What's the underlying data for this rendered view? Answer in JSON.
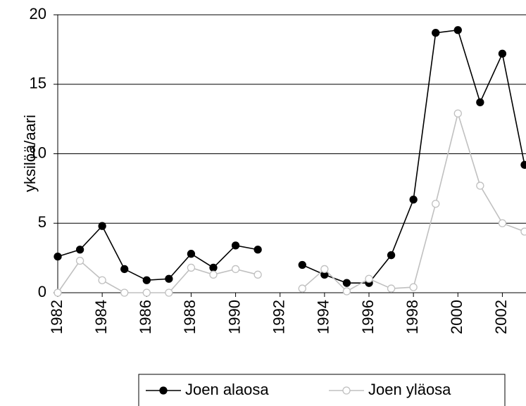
{
  "chart_data": {
    "type": "line",
    "y_label": "yksilöä/aari",
    "x": [
      1982,
      1983,
      1984,
      1985,
      1986,
      1987,
      1988,
      1989,
      1990,
      1991,
      1992,
      1993,
      1994,
      1995,
      1996,
      1997,
      1998,
      1999,
      2000,
      2001,
      2002,
      2003
    ],
    "series": [
      {
        "name": "Joen alaosa",
        "color": "#000000",
        "marker_fill": "#000000",
        "values": [
          2.6,
          3.1,
          4.8,
          1.7,
          0.9,
          1.0,
          2.8,
          1.8,
          3.4,
          3.1,
          null,
          2.0,
          1.3,
          0.7,
          0.7,
          2.7,
          6.7,
          18.7,
          18.9,
          13.7,
          17.2,
          9.2
        ]
      },
      {
        "name": "Joen yläosa",
        "color": "#c0c0c0",
        "marker_fill": "#ffffff",
        "values": [
          0,
          2.3,
          0.9,
          0,
          0,
          0,
          1.8,
          1.3,
          1.7,
          1.3,
          null,
          0.3,
          1.7,
          0.1,
          1.0,
          0.3,
          0.4,
          6.4,
          12.9,
          7.7,
          5.0,
          4.4
        ]
      }
    ],
    "xlim": [
      1982,
      2003
    ],
    "xticks": [
      1982,
      1984,
      1986,
      1988,
      1990,
      1992,
      1994,
      1996,
      1998,
      2000,
      2002
    ],
    "ylim": [
      0,
      20
    ],
    "yticks": [
      0,
      5,
      10,
      15,
      20
    ],
    "grid": true,
    "legend": "bottom"
  }
}
